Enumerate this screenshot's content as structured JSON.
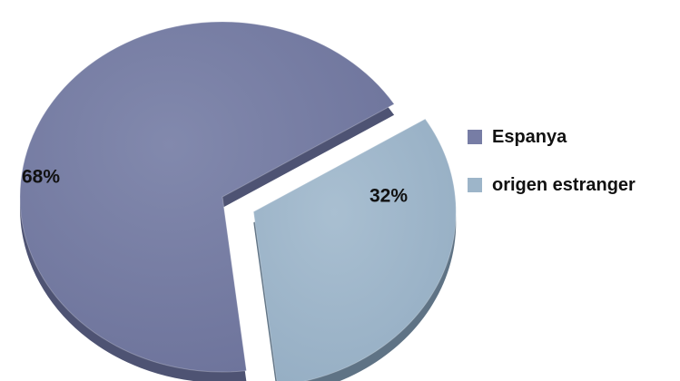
{
  "chart_data": {
    "type": "pie",
    "exploded": true,
    "slices": [
      {
        "label": "Espanya",
        "value": 68,
        "display": "68%",
        "color": "#777da5"
      },
      {
        "label": "origen estranger",
        "value": 32,
        "display": "32%",
        "color": "#9db5c9"
      }
    ],
    "legend_position": "right"
  }
}
